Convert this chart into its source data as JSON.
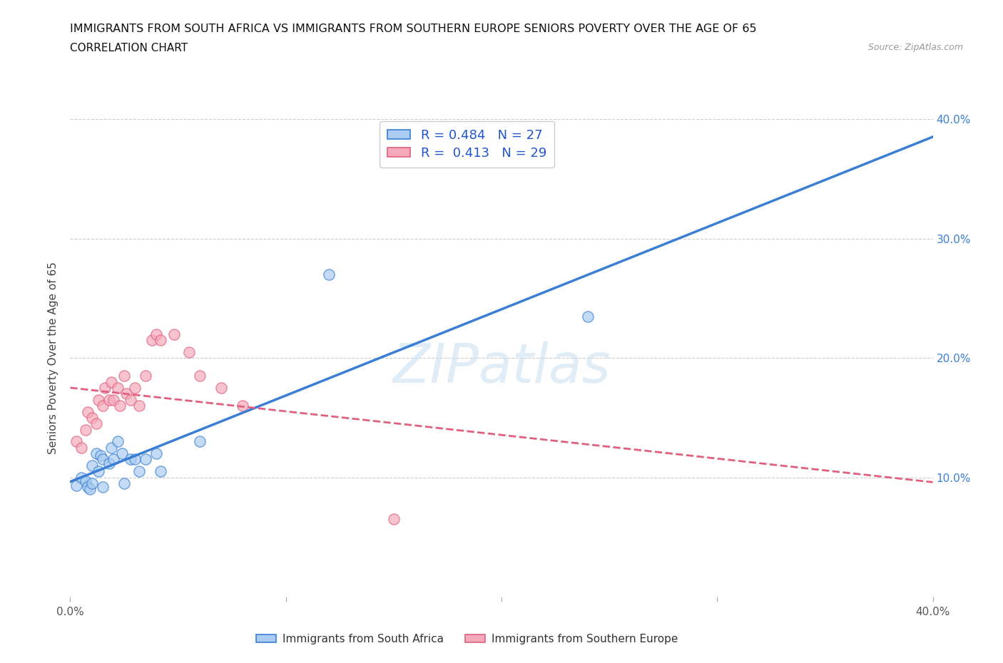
{
  "title": "IMMIGRANTS FROM SOUTH AFRICA VS IMMIGRANTS FROM SOUTHERN EUROPE SENIORS POVERTY OVER THE AGE OF 65",
  "subtitle": "CORRELATION CHART",
  "source": "Source: ZipAtlas.com",
  "ylabel": "Seniors Poverty Over the Age of 65",
  "xlim": [
    0.0,
    0.4
  ],
  "ylim": [
    0.0,
    0.4
  ],
  "blue_R": 0.484,
  "blue_N": 27,
  "pink_R": 0.413,
  "pink_N": 29,
  "blue_color": "#aaccf0",
  "pink_color": "#f5aabb",
  "blue_line_color": "#3a7fd5",
  "pink_line_color": "#e06080",
  "watermark": "ZIPatlas",
  "grid_color": "#cccccc",
  "blue_scatter_x": [
    0.003,
    0.005,
    0.007,
    0.008,
    0.009,
    0.01,
    0.01,
    0.012,
    0.013,
    0.014,
    0.015,
    0.015,
    0.018,
    0.019,
    0.02,
    0.022,
    0.024,
    0.025,
    0.028,
    0.03,
    0.032,
    0.035,
    0.04,
    0.042,
    0.06,
    0.24,
    0.12
  ],
  "blue_scatter_y": [
    0.093,
    0.1,
    0.097,
    0.092,
    0.09,
    0.11,
    0.095,
    0.12,
    0.105,
    0.118,
    0.115,
    0.092,
    0.112,
    0.125,
    0.115,
    0.13,
    0.12,
    0.095,
    0.115,
    0.115,
    0.105,
    0.115,
    0.12,
    0.105,
    0.13,
    0.235,
    0.27
  ],
  "pink_scatter_x": [
    0.003,
    0.005,
    0.007,
    0.008,
    0.01,
    0.012,
    0.013,
    0.015,
    0.016,
    0.018,
    0.019,
    0.02,
    0.022,
    0.023,
    0.025,
    0.026,
    0.028,
    0.03,
    0.032,
    0.035,
    0.038,
    0.04,
    0.042,
    0.048,
    0.055,
    0.06,
    0.07,
    0.08,
    0.15
  ],
  "pink_scatter_y": [
    0.13,
    0.125,
    0.14,
    0.155,
    0.15,
    0.145,
    0.165,
    0.16,
    0.175,
    0.165,
    0.18,
    0.165,
    0.175,
    0.16,
    0.185,
    0.17,
    0.165,
    0.175,
    0.16,
    0.185,
    0.215,
    0.22,
    0.215,
    0.22,
    0.205,
    0.185,
    0.175,
    0.16,
    0.065
  ],
  "blue_line_start_x": 0.0,
  "blue_line_end_x": 0.4,
  "pink_line_start_x": 0.0,
  "pink_line_end_x": 0.4
}
